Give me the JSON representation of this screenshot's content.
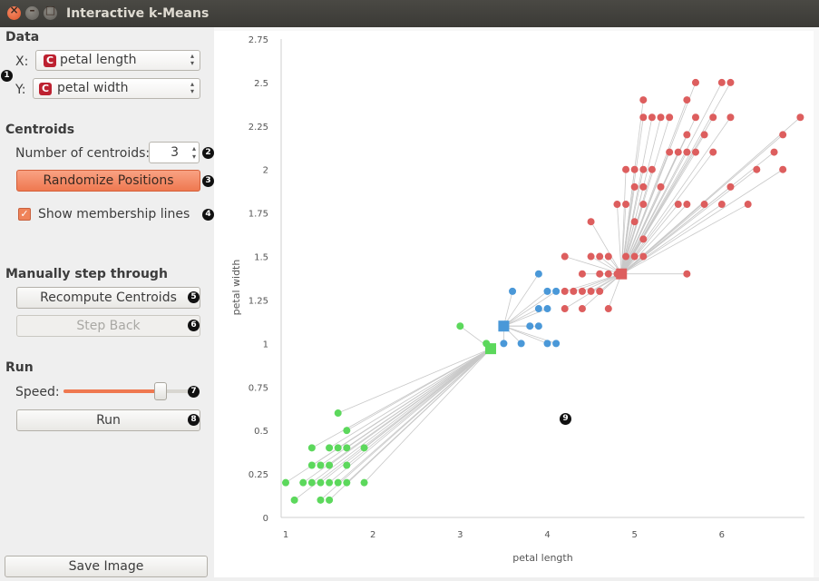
{
  "window": {
    "title": "Interactive k-Means"
  },
  "data_section": {
    "heading": "Data",
    "x_label": "X:",
    "x_value": "petal length",
    "y_label": "Y:",
    "y_value": "petal width",
    "var_icon": "C"
  },
  "centroids_section": {
    "heading": "Centroids",
    "number_label": "Number of centroids:",
    "number_value": "3",
    "randomize_label": "Randomize Positions",
    "membership_label": "Show membership lines",
    "membership_checked": true
  },
  "step_section": {
    "heading": "Manually step through",
    "recompute_label": "Recompute Centroids",
    "step_back_label": "Step Back"
  },
  "run_section": {
    "heading": "Run",
    "speed_label": "Speed:",
    "speed_level": 0.76,
    "run_label": "Run"
  },
  "save_label": "Save Image",
  "annotations": [
    "1",
    "2",
    "3",
    "4",
    "5",
    "6",
    "7",
    "8",
    "9"
  ],
  "colors": {
    "accent": "#ef7850",
    "c1": "#dd5e5e",
    "c2": "#4a98d8",
    "c3": "#5cd85c"
  },
  "chart_data": {
    "type": "scatter",
    "xlabel": "petal length",
    "ylabel": "petal width",
    "xlim": [
      1,
      7
    ],
    "ylim": [
      0,
      2.75
    ],
    "xticks": [
      "1",
      "2",
      "3",
      "4",
      "5",
      "6"
    ],
    "yticks": [
      "0",
      "0.25",
      "0.5",
      "0.75",
      "1",
      "1.25",
      "1.5",
      "1.75",
      "2",
      "2.25",
      "2.5",
      "2.75"
    ],
    "membership_lines": true,
    "clusters": [
      {
        "color": "#5cd85c",
        "centroid": [
          3.35,
          0.97
        ],
        "points": [
          [
            1.0,
            0.2
          ],
          [
            1.1,
            0.1
          ],
          [
            1.2,
            0.2
          ],
          [
            1.3,
            0.2
          ],
          [
            1.3,
            0.3
          ],
          [
            1.3,
            0.4
          ],
          [
            1.4,
            0.2
          ],
          [
            1.4,
            0.3
          ],
          [
            1.4,
            0.1
          ],
          [
            1.5,
            0.2
          ],
          [
            1.5,
            0.1
          ],
          [
            1.5,
            0.3
          ],
          [
            1.5,
            0.4
          ],
          [
            1.6,
            0.2
          ],
          [
            1.6,
            0.4
          ],
          [
            1.6,
            0.6
          ],
          [
            1.7,
            0.2
          ],
          [
            1.7,
            0.3
          ],
          [
            1.7,
            0.4
          ],
          [
            1.7,
            0.5
          ],
          [
            1.9,
            0.2
          ],
          [
            1.9,
            0.4
          ],
          [
            3.0,
            1.1
          ],
          [
            3.3,
            1.0
          ]
        ]
      },
      {
        "color": "#4a98d8",
        "centroid": [
          3.5,
          1.1
        ],
        "points": [
          [
            3.5,
            1.0
          ],
          [
            3.6,
            1.3
          ],
          [
            3.7,
            1.0
          ],
          [
            3.8,
            1.1
          ],
          [
            3.9,
            1.1
          ],
          [
            3.9,
            1.2
          ],
          [
            3.9,
            1.4
          ],
          [
            4.0,
            1.0
          ],
          [
            4.0,
            1.2
          ],
          [
            4.0,
            1.3
          ],
          [
            4.1,
            1.0
          ],
          [
            4.1,
            1.3
          ]
        ]
      },
      {
        "color": "#dd5e5e",
        "centroid": [
          4.85,
          1.4
        ],
        "points": [
          [
            4.2,
            1.3
          ],
          [
            4.2,
            1.2
          ],
          [
            4.2,
            1.5
          ],
          [
            4.3,
            1.3
          ],
          [
            4.4,
            1.2
          ],
          [
            4.4,
            1.3
          ],
          [
            4.4,
            1.4
          ],
          [
            4.5,
            1.3
          ],
          [
            4.5,
            1.5
          ],
          [
            4.5,
            1.7
          ],
          [
            4.6,
            1.3
          ],
          [
            4.6,
            1.4
          ],
          [
            4.6,
            1.5
          ],
          [
            4.7,
            1.2
          ],
          [
            4.7,
            1.4
          ],
          [
            4.7,
            1.5
          ],
          [
            4.8,
            1.4
          ],
          [
            4.8,
            1.8
          ],
          [
            4.9,
            1.5
          ],
          [
            4.9,
            1.8
          ],
          [
            4.9,
            2.0
          ],
          [
            5.0,
            1.5
          ],
          [
            5.0,
            1.7
          ],
          [
            5.0,
            1.9
          ],
          [
            5.0,
            2.0
          ],
          [
            5.1,
            1.5
          ],
          [
            5.1,
            1.6
          ],
          [
            5.1,
            1.8
          ],
          [
            5.1,
            1.9
          ],
          [
            5.1,
            2.0
          ],
          [
            5.1,
            2.3
          ],
          [
            5.1,
            2.4
          ],
          [
            5.2,
            2.0
          ],
          [
            5.2,
            2.3
          ],
          [
            5.3,
            1.9
          ],
          [
            5.3,
            2.3
          ],
          [
            5.4,
            2.1
          ],
          [
            5.4,
            2.3
          ],
          [
            5.5,
            1.8
          ],
          [
            5.5,
            2.1
          ],
          [
            5.6,
            1.4
          ],
          [
            5.6,
            1.8
          ],
          [
            5.6,
            2.1
          ],
          [
            5.6,
            2.2
          ],
          [
            5.6,
            2.4
          ],
          [
            5.7,
            2.1
          ],
          [
            5.7,
            2.3
          ],
          [
            5.7,
            2.5
          ],
          [
            5.8,
            1.8
          ],
          [
            5.8,
            2.2
          ],
          [
            5.9,
            2.1
          ],
          [
            5.9,
            2.3
          ],
          [
            6.0,
            1.8
          ],
          [
            6.0,
            2.5
          ],
          [
            6.1,
            1.9
          ],
          [
            6.1,
            2.3
          ],
          [
            6.1,
            2.5
          ],
          [
            6.3,
            1.8
          ],
          [
            6.4,
            2.0
          ],
          [
            6.6,
            2.1
          ],
          [
            6.7,
            2.0
          ],
          [
            6.7,
            2.2
          ],
          [
            6.9,
            2.3
          ]
        ]
      }
    ]
  }
}
